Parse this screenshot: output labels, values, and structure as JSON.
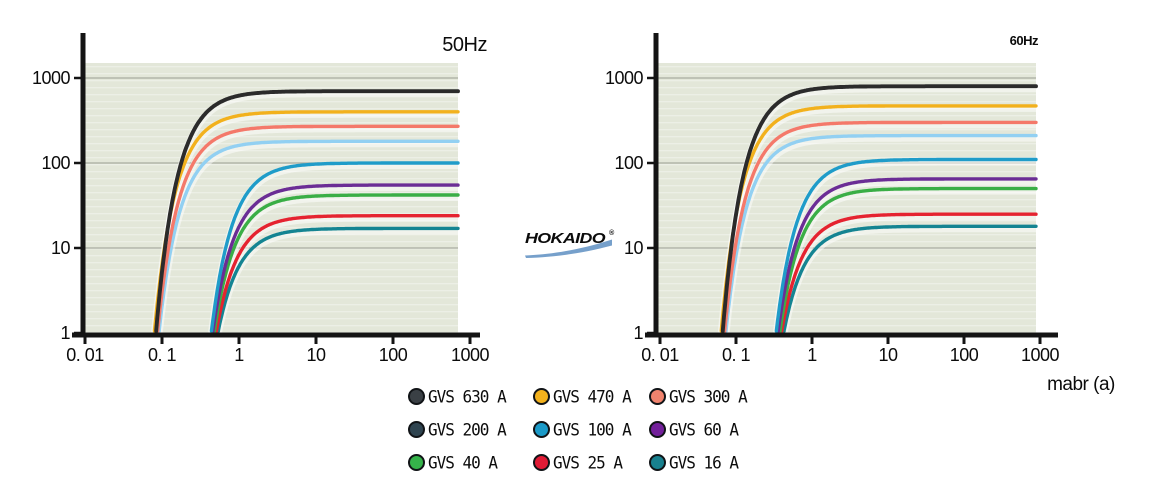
{
  "watermark": {
    "brand": "HOKAIDO",
    "registered_mark": "®",
    "color": "#76a0cb"
  },
  "legend": {
    "items": [
      {
        "label": "GVS 630 A",
        "dot_color": "#3a4045"
      },
      {
        "label": "GVS 470 A",
        "dot_color": "#f2b11d"
      },
      {
        "label": "GVS 300 A",
        "dot_color": "#f0836e"
      },
      {
        "label": "GVS 200 A",
        "dot_color": "#2f4450"
      },
      {
        "label": "GVS 100 A",
        "dot_color": "#1b9ac8"
      },
      {
        "label": "GVS 60 A",
        "dot_color": "#73209b"
      },
      {
        "label": "GVS 40 A",
        "dot_color": "#35b34a"
      },
      {
        "label": "GVS 25 A",
        "dot_color": "#e01b35"
      },
      {
        "label": "GVS 16 A",
        "dot_color": "#18808e"
      }
    ]
  },
  "chart_data": [
    {
      "type": "line",
      "title": "50Hz",
      "x_scale": "log",
      "y_scale": "log",
      "xlim": [
        0.01,
        1000
      ],
      "ylim": [
        1,
        1000
      ],
      "x_ticks": [
        0.01,
        0.1,
        1,
        10,
        100,
        1000
      ],
      "x_tick_labels": [
        "0. 01",
        "0. 1",
        "1",
        "10",
        "100",
        "1000"
      ],
      "y_ticks": [
        1000,
        100,
        10,
        1
      ],
      "y_tick_labels": [
        "1000",
        "100",
        "10",
        "1"
      ],
      "grid": "horizontal",
      "plot_bg": "#e3e7d9",
      "curve_shape": "each curve rises steeply from y=1 at start_x then flattens to plateau",
      "series": [
        {
          "name": "GVS 630 A",
          "color": "#2b2b2b",
          "start_x": 0.084,
          "plateau": 700
        },
        {
          "name": "GVS 470 A",
          "color": "#f2b11d",
          "start_x": 0.08,
          "plateau": 400
        },
        {
          "name": "GVS 300 A",
          "color": "#f4796a",
          "start_x": 0.088,
          "plateau": 270
        },
        {
          "name": "GVS 200 A",
          "color": "#92d0f2",
          "start_x": 0.092,
          "plateau": 180
        },
        {
          "name": "GVS 100 A",
          "color": "#1f9cc9",
          "start_x": 0.44,
          "plateau": 100
        },
        {
          "name": "GVS 60 A",
          "color": "#6b2d95",
          "start_x": 0.46,
          "plateau": 55
        },
        {
          "name": "GVS 40 A",
          "color": "#3aae46",
          "start_x": 0.48,
          "plateau": 42
        },
        {
          "name": "GVS 25 A",
          "color": "#e52330",
          "start_x": 0.51,
          "plateau": 24
        },
        {
          "name": "GVS 16 A",
          "color": "#148492",
          "start_x": 0.54,
          "plateau": 17
        }
      ]
    },
    {
      "type": "line",
      "title": "60Hz",
      "xlabel": "mabr (a)",
      "x_scale": "log",
      "y_scale": "log",
      "xlim": [
        0.01,
        1000
      ],
      "ylim": [
        1,
        1000
      ],
      "x_ticks": [
        0.01,
        0.1,
        1,
        10,
        100,
        1000
      ],
      "x_tick_labels": [
        "0. 01",
        "0. 1",
        "1",
        "10",
        "100",
        "1000"
      ],
      "y_ticks": [
        1000,
        100,
        10,
        1
      ],
      "y_tick_labels": [
        "1000",
        "100",
        "10",
        "1"
      ],
      "grid": "horizontal",
      "plot_bg": "#e3e7d9",
      "curve_shape": "each curve rises steeply from y=1 at start_x then flattens to plateau",
      "series": [
        {
          "name": "GVS 630 A",
          "color": "#2b2b2b",
          "start_x": 0.067,
          "plateau": 800
        },
        {
          "name": "GVS 470 A",
          "color": "#f2b11d",
          "start_x": 0.064,
          "plateau": 470
        },
        {
          "name": "GVS 300 A",
          "color": "#f4796a",
          "start_x": 0.071,
          "plateau": 300
        },
        {
          "name": "GVS 200 A",
          "color": "#92d0f2",
          "start_x": 0.074,
          "plateau": 210
        },
        {
          "name": "GVS 100 A",
          "color": "#1f9cc9",
          "start_x": 0.34,
          "plateau": 110
        },
        {
          "name": "GVS 60 A",
          "color": "#6b2d95",
          "start_x": 0.36,
          "plateau": 65
        },
        {
          "name": "GVS 40 A",
          "color": "#3aae46",
          "start_x": 0.38,
          "plateau": 50
        },
        {
          "name": "GVS 25 A",
          "color": "#e52330",
          "start_x": 0.4,
          "plateau": 25
        },
        {
          "name": "GVS 16 A",
          "color": "#148492",
          "start_x": 0.43,
          "plateau": 18
        }
      ]
    }
  ]
}
